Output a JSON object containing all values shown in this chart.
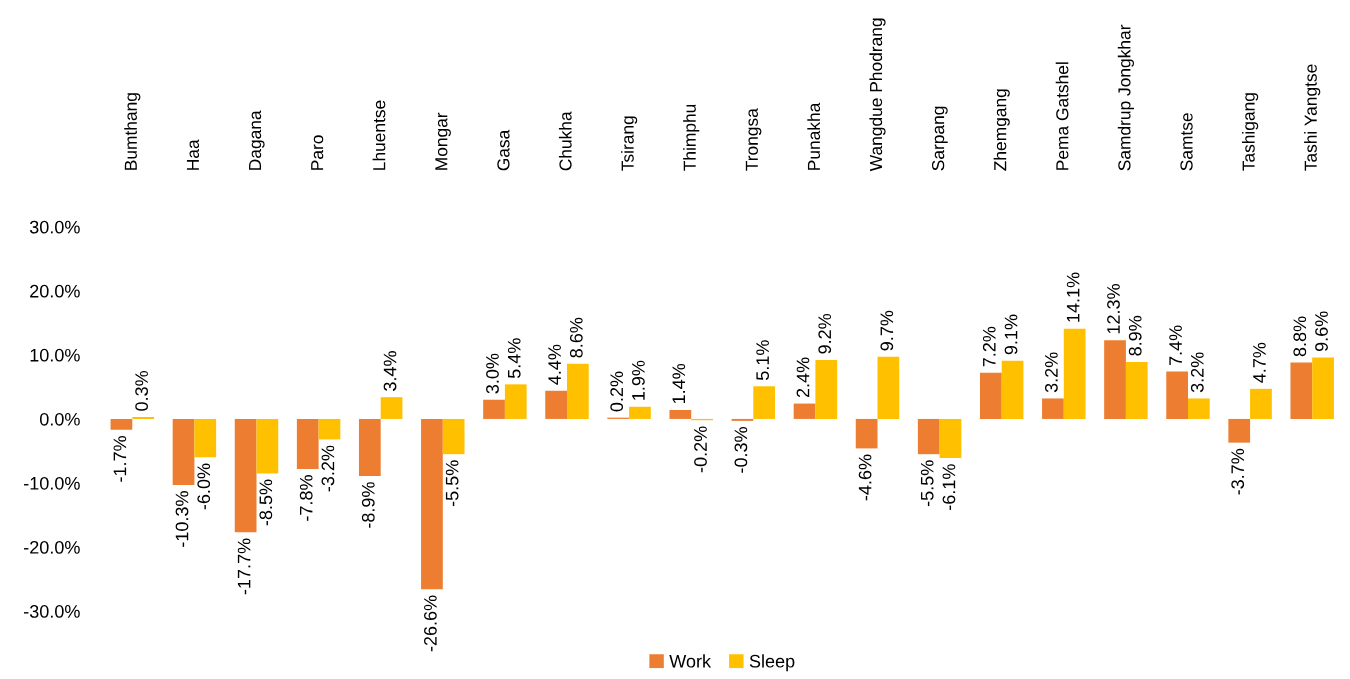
{
  "chart_data": {
    "type": "bar",
    "categories": [
      "Bumthang",
      "Haa",
      "Dagana",
      "Paro",
      "Lhuentse",
      "Mongar",
      "Gasa",
      "Chukha",
      "Tsirang",
      "Thimphu",
      "Trongsa",
      "Punakha",
      "Wangdue Phodrang",
      "Sarpang",
      "Zhemgang",
      "Pema Gatshel",
      "Samdrup Jongkhar",
      "Samtse",
      "Tashigang",
      "Tashi Yangtse"
    ],
    "series": [
      {
        "name": "Work",
        "color": "#ed7d31",
        "values": [
          -1.7,
          -10.3,
          -17.7,
          -7.8,
          -8.9,
          -26.6,
          3.0,
          4.4,
          0.2,
          1.4,
          -0.3,
          2.4,
          -4.6,
          -5.5,
          7.2,
          3.2,
          12.3,
          7.4,
          -3.7,
          8.8
        ],
        "value_labels": [
          "-1.7%",
          "-10.3%",
          "-17.7%",
          "-7.8%",
          "-8.9%",
          "-26.6%",
          "3.0%",
          "4.4%",
          "0.2%",
          "1.4%",
          "-0.3%",
          "2.4%",
          "-4.6%",
          "-5.5%",
          "7.2%",
          "3.2%",
          "12.3%",
          "7.4%",
          "-3.7%",
          "8.8%"
        ]
      },
      {
        "name": "Sleep",
        "color": "#ffc000",
        "values": [
          0.3,
          -6.0,
          -8.5,
          -3.2,
          3.4,
          -5.5,
          5.4,
          8.6,
          1.9,
          -0.2,
          5.1,
          9.2,
          9.7,
          -6.1,
          9.1,
          14.1,
          8.9,
          3.2,
          4.7,
          9.6
        ],
        "value_labels": [
          "0.3%",
          "-6.0%",
          "-8.5%",
          "-3.2%",
          "3.4%",
          "-5.5%",
          "5.4%",
          "8.6%",
          "1.9%",
          "-0.2%",
          "5.1%",
          "9.2%",
          "9.7%",
          "-6.1%",
          "9.1%",
          "14.1%",
          "8.9%",
          "3.2%",
          "4.7%",
          "9.6%"
        ]
      }
    ],
    "ylim": [
      -30,
      30
    ],
    "yticks": [
      {
        "value": -30,
        "label": "-30.0%"
      },
      {
        "value": -20,
        "label": "-20.0%"
      },
      {
        "value": -10,
        "label": "-10.0%"
      },
      {
        "value": 0,
        "label": "0.0%"
      },
      {
        "value": 10,
        "label": "10.0%"
      },
      {
        "value": 20,
        "label": "20.0%"
      },
      {
        "value": 30,
        "label": "30.0%"
      }
    ],
    "grid": false,
    "legend": "bottom"
  }
}
